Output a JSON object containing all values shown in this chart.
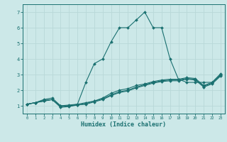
{
  "xlabel": "Humidex (Indice chaleur)",
  "background_color": "#cce8e8",
  "line_color": "#1a7070",
  "grid_color": "#b8d8d8",
  "xlim": [
    -0.5,
    23.5
  ],
  "ylim": [
    0.5,
    7.5
  ],
  "xticks": [
    0,
    1,
    2,
    3,
    4,
    5,
    6,
    7,
    8,
    9,
    10,
    11,
    12,
    13,
    14,
    15,
    16,
    17,
    18,
    19,
    20,
    21,
    22,
    23
  ],
  "yticks": [
    1,
    2,
    3,
    4,
    5,
    6,
    7
  ],
  "curves": [
    {
      "x": [
        0,
        1,
        2,
        3,
        4,
        5,
        6,
        7,
        8,
        9,
        10,
        11,
        12,
        13,
        14,
        15,
        16,
        17,
        18,
        19,
        20,
        21,
        22,
        23
      ],
      "y": [
        1.1,
        1.2,
        1.4,
        1.5,
        1.0,
        1.05,
        1.1,
        2.5,
        3.7,
        4.0,
        5.1,
        6.0,
        6.0,
        6.5,
        7.0,
        6.0,
        6.0,
        4.0,
        2.7,
        2.5,
        2.5,
        2.5,
        2.5,
        3.0
      ]
    },
    {
      "x": [
        0,
        1,
        2,
        3,
        4,
        5,
        6,
        7,
        8,
        9,
        10,
        11,
        12,
        13,
        14,
        15,
        16,
        17,
        18,
        19,
        20,
        21,
        22,
        23
      ],
      "y": [
        1.1,
        1.2,
        1.35,
        1.4,
        1.0,
        1.0,
        1.1,
        1.2,
        1.3,
        1.5,
        1.8,
        2.0,
        2.1,
        2.3,
        2.4,
        2.55,
        2.65,
        2.7,
        2.7,
        2.8,
        2.75,
        2.3,
        2.5,
        3.05
      ]
    },
    {
      "x": [
        0,
        1,
        2,
        3,
        4,
        5,
        6,
        7,
        8,
        9,
        10,
        11,
        12,
        13,
        14,
        15,
        16,
        17,
        18,
        19,
        20,
        21,
        22,
        23
      ],
      "y": [
        1.1,
        1.2,
        1.3,
        1.4,
        0.95,
        1.0,
        1.05,
        1.15,
        1.3,
        1.45,
        1.7,
        1.9,
        2.0,
        2.2,
        2.35,
        2.5,
        2.6,
        2.65,
        2.65,
        2.75,
        2.7,
        2.25,
        2.45,
        2.95
      ]
    },
    {
      "x": [
        0,
        1,
        2,
        3,
        4,
        5,
        6,
        7,
        8,
        9,
        10,
        11,
        12,
        13,
        14,
        15,
        16,
        17,
        18,
        19,
        20,
        21,
        22,
        23
      ],
      "y": [
        1.1,
        1.2,
        1.3,
        1.4,
        0.9,
        0.95,
        1.05,
        1.1,
        1.25,
        1.4,
        1.65,
        1.85,
        1.95,
        2.15,
        2.3,
        2.45,
        2.55,
        2.6,
        2.6,
        2.7,
        2.65,
        2.2,
        2.4,
        2.9
      ]
    }
  ]
}
